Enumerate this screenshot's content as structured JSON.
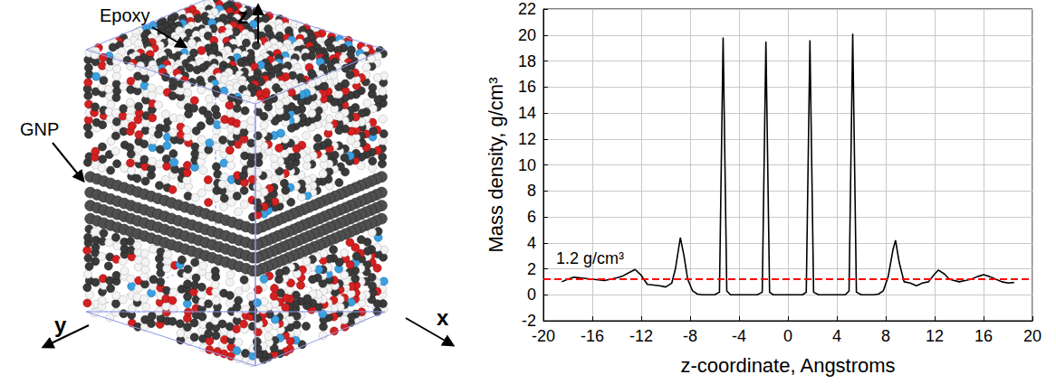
{
  "chart_data": {
    "type": "line",
    "x": [
      -18.5,
      -18,
      -17.5,
      -17,
      -16.5,
      -16,
      -15.5,
      -15,
      -14.5,
      -14,
      -13.5,
      -13,
      -12.5,
      -12,
      -11.5,
      -11,
      -10.5,
      -10,
      -9.5,
      -9.2,
      -8.8,
      -8.5,
      -8.2,
      -7.8,
      -7.4,
      -7,
      -6,
      -5.6,
      -5.3,
      -5,
      -4.7,
      -2.5,
      -2.1,
      -1.8,
      -1.5,
      -1.2,
      1.2,
      1.5,
      1.8,
      2.1,
      2.5,
      4.7,
      5,
      5.3,
      5.6,
      6,
      7,
      7.4,
      7.8,
      8.2,
      8.6,
      8.8,
      9.1,
      9.5,
      10,
      10.5,
      11,
      11.5,
      12,
      12.3,
      12.8,
      13.2,
      14,
      14.5,
      15,
      15.5,
      16,
      16.5,
      17,
      17.5,
      18,
      18.5
    ],
    "values": [
      1.0,
      1.2,
      1.35,
      1.3,
      1.25,
      1.2,
      1.15,
      1.1,
      1.2,
      1.3,
      1.45,
      1.7,
      1.95,
      1.5,
      0.8,
      0.75,
      0.7,
      0.6,
      0.9,
      2.0,
      4.4,
      3.0,
      1.2,
      0.3,
      0.05,
      0,
      0,
      0.2,
      19.8,
      0.3,
      0,
      0,
      0.2,
      19.5,
      0.2,
      0,
      0,
      0.2,
      19.6,
      0.2,
      0,
      0,
      0.3,
      20.1,
      0.2,
      0,
      0,
      0.05,
      0.3,
      1.4,
      3.5,
      4.2,
      2.5,
      1.0,
      0.9,
      0.7,
      0.9,
      1.0,
      1.6,
      1.9,
      1.6,
      1.2,
      1.0,
      1.1,
      1.2,
      1.4,
      1.55,
      1.4,
      1.2,
      1.0,
      0.9,
      0.95
    ],
    "color": "#000000",
    "xlabel": "z-coordinate, Angstroms",
    "ylabel": "Mass density, g/cm³",
    "xlim": [
      -20,
      20
    ],
    "xticks": [
      -20,
      -16,
      -12,
      -8,
      -4,
      0,
      4,
      8,
      12,
      16,
      20
    ],
    "ylim": [
      -2,
      22
    ],
    "yticks": [
      -2,
      0,
      2,
      4,
      6,
      8,
      10,
      12,
      14,
      16,
      18,
      20,
      22
    ],
    "grid": true,
    "reference_line": {
      "value": 1.2,
      "label": "1.2 g/cm³",
      "color": "#ff0000",
      "line_style": "dashed"
    }
  },
  "illustration": {
    "labels": {
      "matrix": "Epoxy",
      "filler": "GNP"
    },
    "axes": [
      "x",
      "y",
      "z"
    ]
  }
}
